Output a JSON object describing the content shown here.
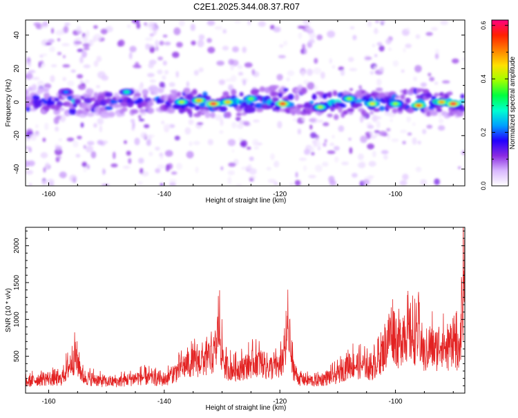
{
  "title": "C2E1.2025.344.08.37.R07",
  "colors": {
    "snr_line": "#e32222",
    "background": "#ffffff",
    "colorbar": [
      "#ffffff",
      "#d9b8ff",
      "#8a2be2",
      "#2200ff",
      "#00a0ff",
      "#00ffd0",
      "#00ff40",
      "#a0ff00",
      "#ffe000",
      "#ff8000",
      "#ff2000",
      "#ff0080"
    ]
  },
  "chart_data": [
    {
      "type": "heatmap",
      "xlabel": "Height of straight line (km)",
      "ylabel": "Frequency (Hz)",
      "xlim": [
        -164,
        -88
      ],
      "ylim": [
        -50,
        49
      ],
      "x_ticks": [
        -160,
        -140,
        -120,
        -100
      ],
      "x_tick_labels": [
        "-160",
        "-140",
        "-120",
        "-100"
      ],
      "y_ticks": [
        -40,
        -20,
        0,
        20,
        40
      ],
      "y_tick_labels": [
        "-40",
        "-20",
        "0",
        "20",
        "40"
      ],
      "description_band": "strong energy band centered near 0 Hz spanning whole height range, strongest between -135 and -90 km",
      "hot_spots": [
        {
          "x": -137,
          "y": 0,
          "v": 0.42
        },
        {
          "x": -134,
          "y": 1,
          "v": 0.5
        },
        {
          "x": -131.5,
          "y": -1,
          "v": 0.6
        },
        {
          "x": -129,
          "y": 0,
          "v": 0.48
        },
        {
          "x": -125,
          "y": 2,
          "v": 0.38
        },
        {
          "x": -119.5,
          "y": -1,
          "v": 0.58
        },
        {
          "x": -113,
          "y": -3,
          "v": 0.42
        },
        {
          "x": -108,
          "y": 2,
          "v": 0.4
        },
        {
          "x": -104,
          "y": -1,
          "v": 0.45
        },
        {
          "x": -100,
          "y": -1,
          "v": 0.4
        },
        {
          "x": -96,
          "y": -2,
          "v": 0.55
        },
        {
          "x": -92,
          "y": 0,
          "v": 0.5
        },
        {
          "x": -90,
          "y": -1,
          "v": 0.6
        },
        {
          "x": -146.5,
          "y": 6,
          "v": 0.3
        },
        {
          "x": -157,
          "y": 6,
          "v": 0.22
        }
      ],
      "colorbar": {
        "label": "Normalized spectral amplitude",
        "range": [
          0.0,
          0.62
        ],
        "ticks": [
          0.0,
          0.2,
          0.4,
          0.6
        ],
        "tick_labels": [
          "0.0",
          "0.2",
          "0.4",
          "0.6"
        ]
      }
    },
    {
      "type": "line",
      "xlabel": "Height of straight line (km)",
      "ylabel": "SNR (10 * v/v)",
      "xlim": [
        -164,
        -88
      ],
      "ylim": [
        0,
        2250
      ],
      "x_ticks": [
        -160,
        -140,
        -120,
        -100
      ],
      "x_tick_labels": [
        "-160",
        "-140",
        "-120",
        "-100"
      ],
      "y_ticks": [
        500,
        1000,
        1500,
        2000
      ],
      "y_tick_labels": [
        "500",
        "1000",
        "1500",
        "2000"
      ],
      "series": [
        {
          "name": "SNR",
          "x": [
            -164,
            -162,
            -160,
            -158,
            -156.5,
            -155.5,
            -154,
            -152,
            -150,
            -148,
            -146,
            -144,
            -142,
            -140,
            -138,
            -136,
            -134,
            -132,
            -131,
            -130.6,
            -130.2,
            -129.5,
            -128,
            -126,
            -124,
            -122,
            -120,
            -119,
            -118.6,
            -118,
            -117,
            -116,
            -114,
            -112,
            -110,
            -108,
            -106,
            -104,
            -102,
            -100.5,
            -99.5,
            -98.5,
            -97,
            -96,
            -95,
            -94,
            -93,
            -92,
            -91,
            -90,
            -89.5,
            -89,
            -88.6,
            -88.2
          ],
          "y": [
            200,
            260,
            280,
            250,
            500,
            720,
            300,
            260,
            210,
            220,
            260,
            300,
            280,
            250,
            400,
            550,
            600,
            650,
            800,
            1370,
            900,
            500,
            450,
            500,
            620,
            480,
            500,
            800,
            1270,
            600,
            300,
            250,
            230,
            280,
            350,
            550,
            520,
            480,
            800,
            1250,
            900,
            1200,
            1050,
            1100,
            700,
            900,
            800,
            1000,
            750,
            1100,
            900,
            600,
            1400,
            2250
          ]
        }
      ]
    }
  ]
}
